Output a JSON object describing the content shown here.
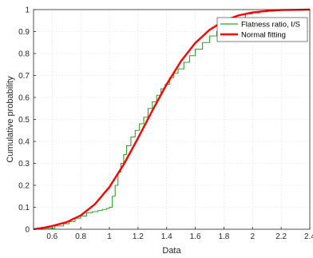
{
  "chart_data": {
    "type": "line",
    "xlabel": "Data",
    "ylabel": "Cumulative probability",
    "xlim": [
      0.47,
      2.4
    ],
    "ylim": [
      0,
      1
    ],
    "x_ticks": [
      0.6,
      0.8,
      1,
      1.2,
      1.4,
      1.6,
      1.8,
      2,
      2.2,
      2.4
    ],
    "x_tick_labels": [
      "0.6",
      "0.8",
      "1",
      "1.2",
      "1.4",
      "1.6",
      "1.8",
      "2",
      "2.2",
      "2.4"
    ],
    "y_ticks": [
      0,
      0.1,
      0.2,
      0.3,
      0.4,
      0.5,
      0.6,
      0.7,
      0.8,
      0.9,
      1
    ],
    "y_tick_labels": [
      "0",
      "0.1",
      "0.2",
      "0.3",
      "0.4",
      "0.5",
      "0.6",
      "0.7",
      "0.8",
      "0.9",
      "1"
    ],
    "grid": true,
    "legend_position": "top-right",
    "series": [
      {
        "name": "Flatness ratio, I/S",
        "color": "#33a02c",
        "style": "step",
        "x": [
          0.47,
          0.55,
          0.62,
          0.68,
          0.72,
          0.76,
          0.8,
          0.84,
          0.88,
          0.92,
          0.95,
          0.98,
          1.0,
          1.02,
          1.04,
          1.06,
          1.08,
          1.1,
          1.12,
          1.15,
          1.18,
          1.21,
          1.24,
          1.27,
          1.3,
          1.33,
          1.36,
          1.39,
          1.42,
          1.45,
          1.48,
          1.52,
          1.56,
          1.6,
          1.65,
          1.7,
          1.75,
          1.8,
          1.85,
          1.9,
          1.95,
          2.0,
          2.05,
          2.1,
          2.15,
          2.2,
          2.25,
          2.4
        ],
        "y": [
          0.0,
          0.005,
          0.015,
          0.025,
          0.035,
          0.05,
          0.06,
          0.075,
          0.08,
          0.085,
          0.09,
          0.095,
          0.1,
          0.15,
          0.2,
          0.26,
          0.3,
          0.34,
          0.38,
          0.42,
          0.45,
          0.48,
          0.51,
          0.55,
          0.58,
          0.61,
          0.64,
          0.66,
          0.69,
          0.71,
          0.73,
          0.76,
          0.79,
          0.82,
          0.85,
          0.88,
          0.9,
          0.92,
          0.94,
          0.96,
          0.98,
          0.985,
          0.99,
          0.993,
          0.996,
          0.998,
          1.0,
          1.0
        ]
      },
      {
        "name": "Normal fitting",
        "color": "#ff0000",
        "style": "smooth",
        "x": [
          0.47,
          0.55,
          0.6,
          0.7,
          0.8,
          0.9,
          1.0,
          1.1,
          1.2,
          1.3,
          1.4,
          1.5,
          1.6,
          1.7,
          1.8,
          1.9,
          2.0,
          2.1,
          2.2,
          2.3,
          2.4
        ],
        "y": [
          0.0,
          0.008,
          0.015,
          0.032,
          0.063,
          0.115,
          0.192,
          0.295,
          0.415,
          0.54,
          0.66,
          0.765,
          0.848,
          0.908,
          0.948,
          0.973,
          0.987,
          0.994,
          0.998,
          0.999,
          1.0
        ]
      }
    ]
  }
}
